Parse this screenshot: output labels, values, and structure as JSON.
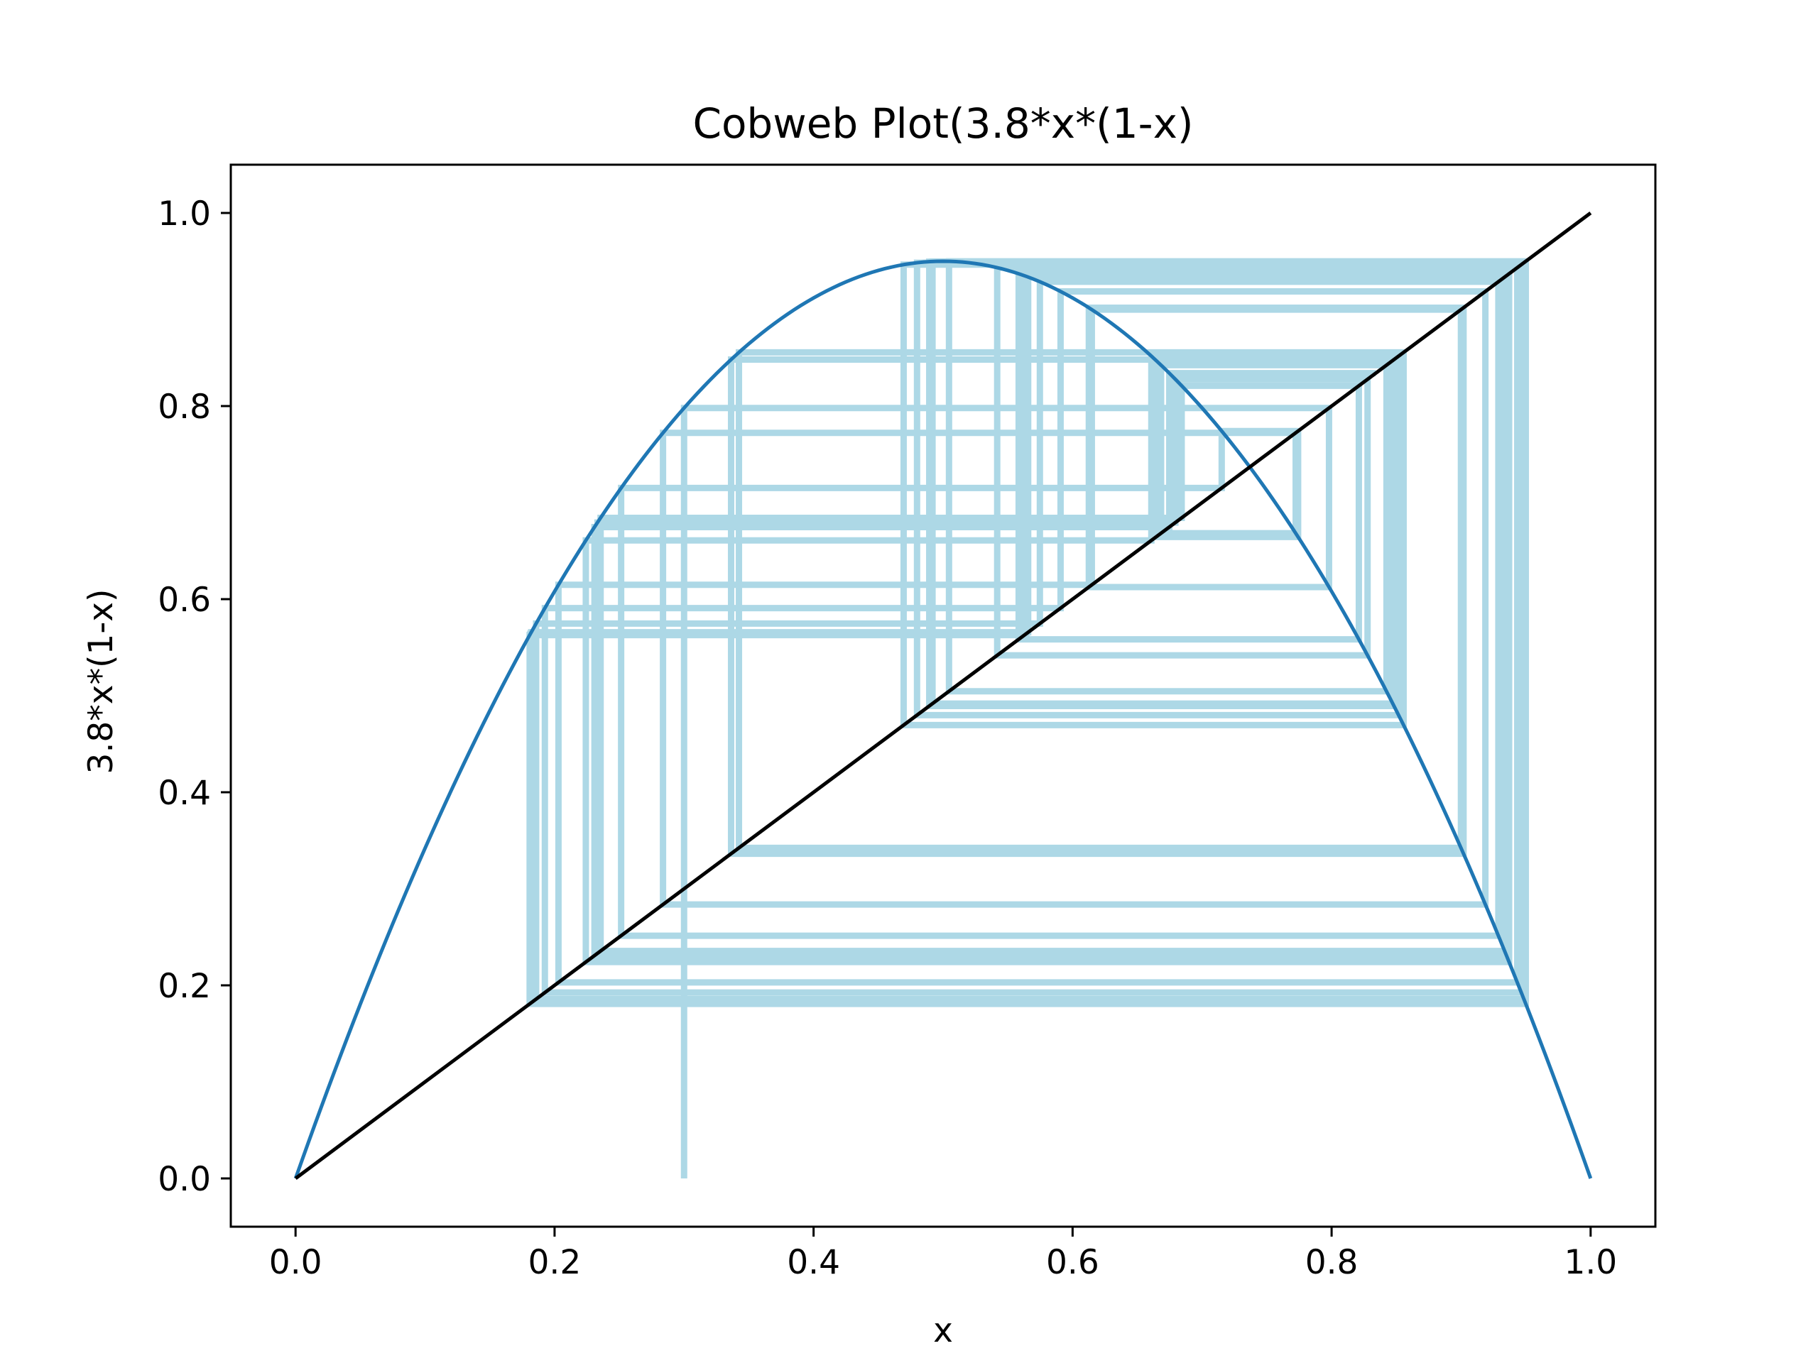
{
  "chart_data": {
    "type": "line",
    "title": "Cobweb Plot(3.8*x*(1-x)",
    "xlabel": "x",
    "ylabel": "3.8*x*(1-x)",
    "xlim": [
      -0.05,
      1.05
    ],
    "ylim": [
      -0.05,
      1.05
    ],
    "x_ticks": [
      0.0,
      0.2,
      0.4,
      0.6,
      0.8,
      1.0
    ],
    "y_ticks": [
      0.0,
      0.2,
      0.4,
      0.6,
      0.8,
      1.0
    ],
    "x_tick_labels": [
      "0.0",
      "0.2",
      "0.4",
      "0.6",
      "0.8",
      "1.0"
    ],
    "y_tick_labels": [
      "0.0",
      "0.2",
      "0.4",
      "0.6",
      "0.8",
      "1.0"
    ],
    "grid": false,
    "legend": "none",
    "function": {
      "r": 3.8,
      "x_min": 0,
      "x_max": 1,
      "samples": 201,
      "color": "#1f77b4"
    },
    "identity_line": {
      "x": [
        0,
        1
      ],
      "y": [
        0,
        1
      ],
      "color": "#000000"
    },
    "cobweb_series": [
      {
        "x0": 0.3,
        "iterations": 60,
        "color": "#90ee90"
      },
      {
        "x0": 0.3,
        "iterations": 60,
        "color": "#add8e6"
      }
    ]
  }
}
